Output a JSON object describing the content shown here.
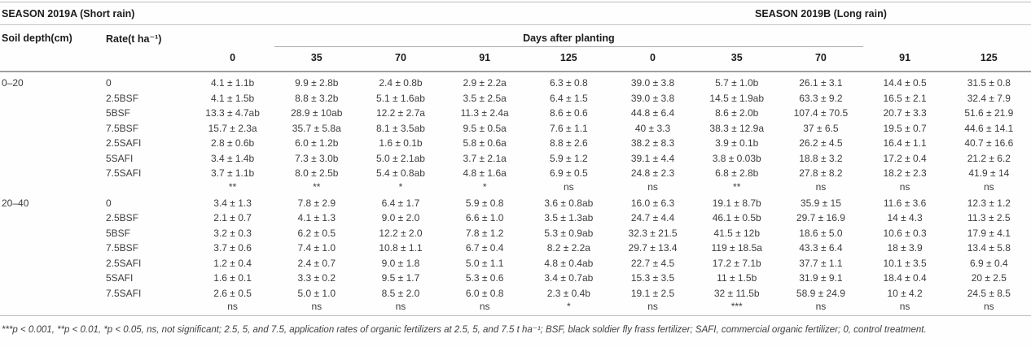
{
  "table": {
    "season_a_header": "SEASON 2019A (Short rain)",
    "season_b_header": "SEASON 2019B (Long rain)",
    "soil_depth_header": "Soil depth(cm)",
    "rate_header": "Rate(t ha⁻¹)",
    "days_header": "Days after planting",
    "day_columns": [
      "0",
      "35",
      "70",
      "91",
      "125",
      "0",
      "35",
      "70",
      "91",
      "125"
    ],
    "sections": [
      {
        "depth": "0–20",
        "rows": [
          {
            "rate": "0",
            "values": [
              "4.1 ± 1.1b",
              "9.9 ± 2.8b",
              "2.4 ± 0.8b",
              "2.9 ± 2.2a",
              "6.3 ± 0.8",
              "39.0 ± 3.8",
              "5.7 ± 1.0b",
              "26.1 ± 3.1",
              "14.4 ± 0.5",
              "31.5 ± 0.8"
            ]
          },
          {
            "rate": "2.5BSF",
            "values": [
              "4.1 ± 1.5b",
              "8.8 ± 3.2b",
              "5.1 ± 1.6ab",
              "3.5 ± 2.5a",
              "6.4 ± 1.5",
              "39.0 ± 3.8",
              "14.5 ± 1.9ab",
              "63.3 ± 9.2",
              "16.5 ± 2.1",
              "32.4 ± 7.9"
            ]
          },
          {
            "rate": "5BSF",
            "values": [
              "13.3 ± 4.7ab",
              "28.9 ± 10ab",
              "12.2 ± 2.7a",
              "11.3 ± 2.4a",
              "8.6 ± 0.6",
              "44.8 ± 6.4",
              "8.6 ± 2.0b",
              "107.4 ± 70.5",
              "20.7 ± 3.3",
              "51.6 ± 21.9"
            ]
          },
          {
            "rate": "7.5BSF",
            "values": [
              "15.7 ± 2.3a",
              "35.7 ± 5.8a",
              "8.1 ± 3.5ab",
              "9.5 ± 0.5a",
              "7.6 ± 1.1",
              "40 ± 3.3",
              "38.3 ± 12.9a",
              "37 ± 6.5",
              "19.5 ± 0.7",
              "44.6 ± 14.1"
            ]
          },
          {
            "rate": "2.5SAFI",
            "values": [
              "2.8 ± 0.6b",
              "6.0 ± 1.2b",
              "1.6 ± 0.1b",
              "5.8 ± 0.6a",
              "8.8 ± 2.6",
              "38.2 ± 8.3",
              "3.9 ± 0.1b",
              "26.2 ± 4.5",
              "16.4 ± 1.1",
              "40.7 ± 16.6"
            ]
          },
          {
            "rate": "5SAFI",
            "values": [
              "3.4 ± 1.4b",
              "7.3 ± 3.0b",
              "5.0 ± 2.1ab",
              "3.7 ± 2.1a",
              "5.9 ± 1.2",
              "39.1 ± 4.4",
              "3.8 ± 0.03b",
              "18.8 ± 3.2",
              "17.2 ± 0.4",
              "21.2 ± 6.2"
            ]
          },
          {
            "rate": "7.5SAFI",
            "values": [
              "3.7 ± 1.1b",
              "8.0 ± 2.5b",
              "5.4 ± 0.8ab",
              "4.8 ± 1.6a",
              "6.9 ± 0.5",
              "24.8 ± 2.3",
              "6.8 ± 2.8b",
              "27.8 ± 8.2",
              "18.2 ± 2.3",
              "41.9 ± 14"
            ]
          }
        ],
        "significance": [
          "**",
          "**",
          "*",
          "*",
          "ns",
          "ns",
          "**",
          "ns",
          "ns",
          "ns"
        ]
      },
      {
        "depth": "20–40",
        "rows": [
          {
            "rate": "0",
            "values": [
              "3.4 ± 1.3",
              "7.8 ± 2.9",
              "6.4 ± 1.7",
              "5.9 ± 0.8",
              "3.6 ± 0.8ab",
              "16.0 ± 6.3",
              "19.1 ± 8.7b",
              "35.9 ± 15",
              "11.6 ± 3.6",
              "12.3 ± 1.2"
            ]
          },
          {
            "rate": "2.5BSF",
            "values": [
              "2.1 ± 0.7",
              "4.1 ± 1.3",
              "9.0 ± 2.0",
              "6.6 ± 1.0",
              "3.5 ± 1.3ab",
              "24.7 ± 4.4",
              "46.1 ± 0.5b",
              "29.7 ± 16.9",
              "14 ± 4.3",
              "11.3 ± 2.5"
            ]
          },
          {
            "rate": "5BSF",
            "values": [
              "3.2 ± 0.3",
              "6.2 ± 0.5",
              "12.2 ± 2.0",
              "7.8 ± 1.2",
              "5.3 ± 0.9ab",
              "32.3 ± 21.5",
              "41.5 ± 12b",
              "18.6 ± 5.0",
              "10.6 ± 0.3",
              "17.9 ± 4.1"
            ]
          },
          {
            "rate": "7.5BSF",
            "values": [
              "3.7 ± 0.6",
              "7.4 ± 1.0",
              "10.8 ± 1.1",
              "6.7 ± 0.4",
              "8.2 ± 2.2a",
              "29.7 ± 13.4",
              "119 ± 18.5a",
              "43.3 ± 6.4",
              "18 ± 3.9",
              "13.4 ± 5.8"
            ]
          },
          {
            "rate": "2.5SAFI",
            "values": [
              "1.2 ± 0.4",
              "2.4 ± 0.7",
              "9.0 ± 1.8",
              "5.0 ± 1.1",
              "4.8 ± 0.4ab",
              "22.7 ± 4.5",
              "17.2 ± 7.1b",
              "37.7 ± 1.1",
              "10.1 ± 3.5",
              "6.9 ± 0.4"
            ]
          },
          {
            "rate": "5SAFI",
            "values": [
              "1.6 ± 0.1",
              "3.3 ± 0.2",
              "9.5 ± 1.7",
              "5.3 ± 0.6",
              "3.4 ± 0.7ab",
              "15.3 ± 3.5",
              "11 ± 1.5b",
              "31.9 ± 9.1",
              "18.4 ± 0.4",
              "20 ± 2.5"
            ]
          },
          {
            "rate": "7.5SAFI",
            "values": [
              "2.6 ± 0.5",
              "5.0 ± 1.0",
              "8.5 ± 2.0",
              "6.0 ± 0.8",
              "2.3 ± 0.4b",
              "19.1 ± 2.5",
              "32 ± 11.5b",
              "58.9 ± 24.9",
              "10 ± 4.2",
              "24.5 ± 8.5"
            ]
          }
        ],
        "significance": [
          "ns",
          "ns",
          "ns",
          "ns",
          "*",
          "ns",
          "***",
          "ns",
          "ns",
          "ns"
        ]
      }
    ],
    "footnote": "***p < 0.001, **p < 0.01, *p < 0.05, ns, not significant; 2.5, 5, and 7.5, application rates of organic fertilizers at 2.5, 5, and 7.5 t ha⁻¹; BSF, black soldier fly frass fertilizer; SAFI, commercial organic fertilizer; 0, control treatment."
  }
}
